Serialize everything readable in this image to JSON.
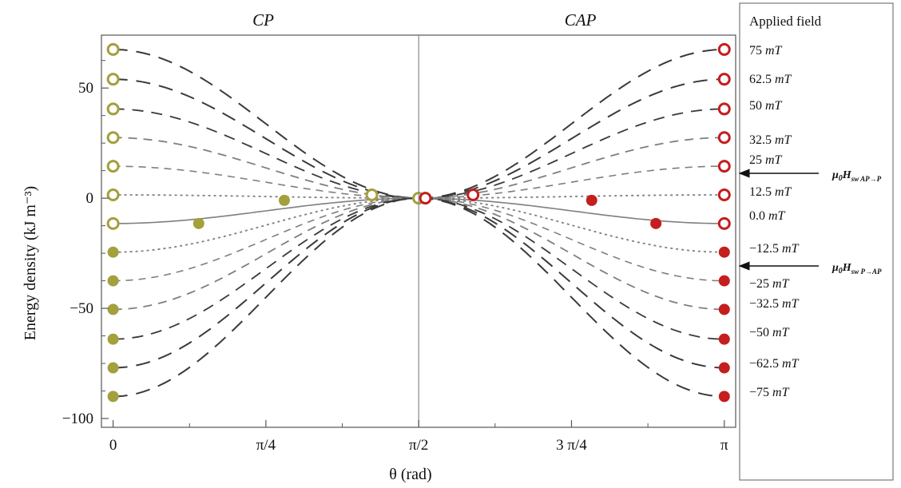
{
  "chart_data": {
    "type": "line",
    "titles": {
      "left": "CP",
      "right": "CAP"
    },
    "xlabel": "θ (rad)",
    "ylabel": "Energy density (kJ m⁻³)",
    "xlim": [
      -0.06,
      3.2
    ],
    "ylim": [
      -104,
      74
    ],
    "x_ticks": [
      {
        "value": 0,
        "label": "0"
      },
      {
        "value": 0.7854,
        "label": "π/4"
      },
      {
        "value": 1.5708,
        "label": "π/2"
      },
      {
        "value": 2.3562,
        "label": "3 π/4"
      },
      {
        "value": 3.1416,
        "label": "π"
      }
    ],
    "y_ticks": [
      {
        "value": 50,
        "label": "50"
      },
      {
        "value": 0,
        "label": "0"
      },
      {
        "value": -50,
        "label": "−50"
      },
      {
        "value": -100,
        "label": "−100"
      }
    ],
    "vline_x": 1.5708,
    "grid": false,
    "legend": {
      "title": "Applied field",
      "placement": "right",
      "entries": [
        "75 mT",
        "62.5 mT",
        "50 mT",
        "32.5 mT",
        "25 mT",
        "12.5 mT",
        "0.0 mT",
        "−12.5 mT",
        "−25 mT",
        "−32.5 mT",
        "−50 mT",
        "−62.5 mT",
        "−75 mT"
      ]
    },
    "annotations": [
      {
        "text": "μ0Hsw AP→P",
        "points_to": "25 mT"
      },
      {
        "text": "μ0Hsw P→AP",
        "points_to": "−12.5 mT"
      }
    ],
    "series": [
      {
        "field_mT": 75,
        "e0": 67.5,
        "epi": 67.5,
        "style": "dash-dark-long"
      },
      {
        "field_mT": 62.5,
        "e0": 54,
        "epi": 54,
        "style": "dash-dark-long"
      },
      {
        "field_mT": 50,
        "e0": 40.5,
        "epi": 40.5,
        "style": "dash-dark"
      },
      {
        "field_mT": 32.5,
        "e0": 27.5,
        "epi": 27.5,
        "style": "dash-mid"
      },
      {
        "field_mT": 25,
        "e0": 14.5,
        "epi": 14.5,
        "style": "dash-light"
      },
      {
        "field_mT": 12.5,
        "e0": 1.5,
        "epi": 1.5,
        "style": "dot"
      },
      {
        "field_mT": 0,
        "e0": -11.5,
        "epi": -11.5,
        "style": "solid"
      },
      {
        "field_mT": -12.5,
        "e0": -24.5,
        "epi": -24.5,
        "style": "dot"
      },
      {
        "field_mT": -25,
        "e0": -37.5,
        "epi": -37.5,
        "style": "dash-light"
      },
      {
        "field_mT": -32.5,
        "e0": -50.5,
        "epi": -50.5,
        "style": "dash-mid"
      },
      {
        "field_mT": -50,
        "e0": -64,
        "epi": -64,
        "style": "dash-dark"
      },
      {
        "field_mT": -62.5,
        "e0": -77,
        "epi": -77,
        "style": "dash-dark-long"
      },
      {
        "field_mT": -75,
        "e0": -90,
        "epi": -90,
        "style": "dash-dark-long"
      }
    ],
    "markers_left": [
      {
        "x": 0,
        "y": 67.5,
        "filled": false
      },
      {
        "x": 0,
        "y": 54,
        "filled": false
      },
      {
        "x": 0,
        "y": 40.5,
        "filled": false
      },
      {
        "x": 0,
        "y": 27.5,
        "filled": false
      },
      {
        "x": 0,
        "y": 14.5,
        "filled": false
      },
      {
        "x": 0,
        "y": 1.5,
        "filled": false
      },
      {
        "x": 0,
        "y": -11.5,
        "filled": false
      },
      {
        "x": 0,
        "y": -24.5,
        "filled": true
      },
      {
        "x": 0,
        "y": -37.5,
        "filled": true
      },
      {
        "x": 0,
        "y": -50.5,
        "filled": true
      },
      {
        "x": 0,
        "y": -64,
        "filled": true
      },
      {
        "x": 0,
        "y": -77,
        "filled": true
      },
      {
        "x": 0,
        "y": -90,
        "filled": true
      },
      {
        "x": 0.44,
        "y": -11.5,
        "filled": true
      },
      {
        "x": 0.88,
        "y": -1,
        "filled": true
      },
      {
        "x": 1.33,
        "y": 1.5,
        "filled": false
      },
      {
        "x": 1.57,
        "y": 0,
        "filled": false
      }
    ],
    "markers_right": [
      {
        "x": 3.1416,
        "y": 67.5,
        "filled": false
      },
      {
        "x": 3.1416,
        "y": 54,
        "filled": false
      },
      {
        "x": 3.1416,
        "y": 40.5,
        "filled": false
      },
      {
        "x": 3.1416,
        "y": 27.5,
        "filled": false
      },
      {
        "x": 3.1416,
        "y": 14.5,
        "filled": false
      },
      {
        "x": 3.1416,
        "y": 1.5,
        "filled": false
      },
      {
        "x": 3.1416,
        "y": -11.5,
        "filled": false
      },
      {
        "x": 3.1416,
        "y": -24.5,
        "filled": true
      },
      {
        "x": 3.1416,
        "y": -37.5,
        "filled": true
      },
      {
        "x": 3.1416,
        "y": -50.5,
        "filled": true
      },
      {
        "x": 3.1416,
        "y": -64,
        "filled": true
      },
      {
        "x": 3.1416,
        "y": -77,
        "filled": true
      },
      {
        "x": 3.1416,
        "y": -90,
        "filled": true
      },
      {
        "x": 1.605,
        "y": 0,
        "filled": false
      },
      {
        "x": 1.85,
        "y": 1.5,
        "filled": false
      },
      {
        "x": 2.46,
        "y": -1,
        "filled": true
      },
      {
        "x": 2.79,
        "y": -11.5,
        "filled": true
      }
    ],
    "colors": {
      "left_marker": "#a3a03d",
      "right_marker": "#c41e1e",
      "dark_line": "#3a3a3a",
      "mid_line": "#7f7f7f",
      "light_line": "#c6c6c6",
      "axis": "#555555"
    }
  }
}
